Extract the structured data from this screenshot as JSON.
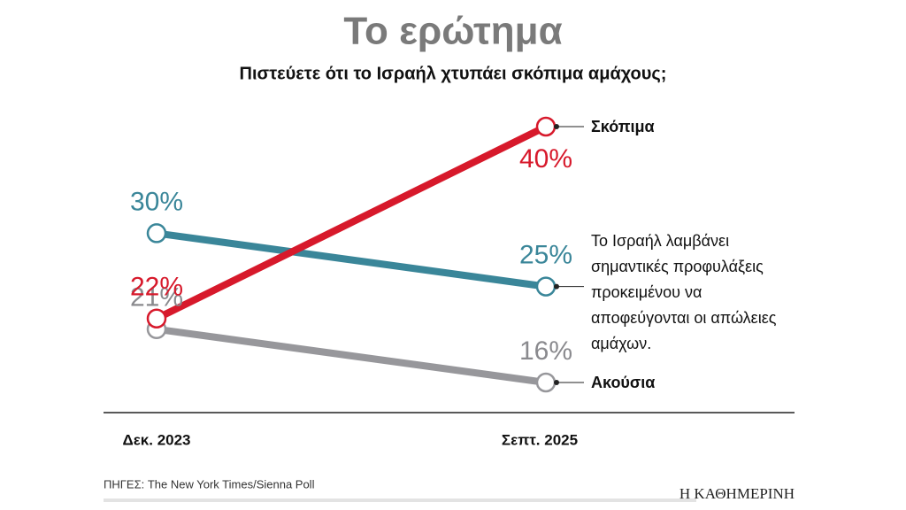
{
  "chart_data": {
    "type": "slope",
    "title": "Το ερώτημα",
    "subtitle": "Πιστεύετε ότι το Ισραήλ χτυπάει σκόπιμα αμάχους;",
    "categories": [
      "Δεκ. 2023",
      "Σεπτ. 2025"
    ],
    "series": [
      {
        "name": "Το Ισραήλ λαμβάνει σημαντικές προφυλάξεις προκειμένου να αποφεύγονται οι απώλειες αμάχων.",
        "color": "#3a8699",
        "values": [
          30,
          25
        ],
        "value_labels": [
          "30%",
          "25%"
        ]
      },
      {
        "name": "Ακούσια",
        "color": "#97979b",
        "values": [
          21,
          16
        ],
        "value_labels": [
          "21%",
          "16%"
        ]
      },
      {
        "name": "Σκόπιμα",
        "color": "#d7192b",
        "values": [
          22,
          40
        ],
        "value_labels": [
          "22%",
          "40%"
        ]
      }
    ],
    "source": "ΠΗΓΕΣ: The New York Times/Sienna Poll",
    "publisher": "Η ΚΑΘΗΜΕΡΙΝΗ"
  }
}
